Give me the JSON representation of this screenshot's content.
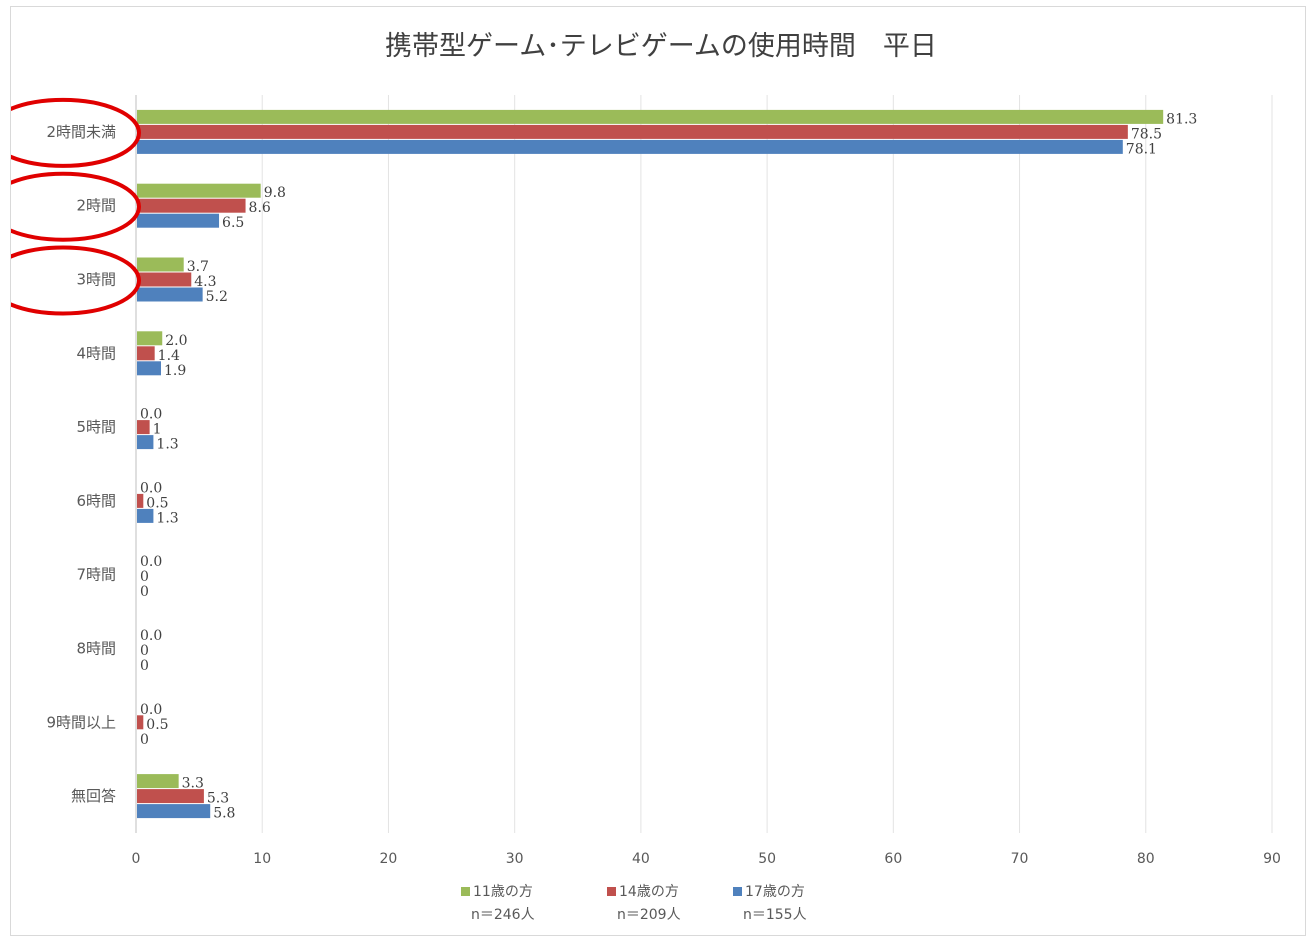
{
  "chart_data": {
    "type": "bar",
    "orientation": "horizontal",
    "title": "携帯型ゲーム･テレビゲームの使用時間　平日",
    "categories": [
      "2時間未満",
      "2時間",
      "3時間",
      "4時間",
      "5時間",
      "6時間",
      "7時間",
      "8時間",
      "9時間以上",
      "無回答"
    ],
    "series": [
      {
        "name": "11歳の方",
        "n_label": "n＝246人",
        "color": "#9bbb59",
        "values": [
          81.3,
          9.8,
          3.7,
          2.0,
          0.0,
          0.0,
          0.0,
          0.0,
          0.0,
          3.3
        ],
        "labels": [
          "81.3",
          "9.8",
          "3.7",
          "2.0",
          "0.0",
          "0.0",
          "0.0",
          "0.0",
          "0.0",
          "3.3"
        ]
      },
      {
        "name": "14歳の方",
        "n_label": "n＝209人",
        "color": "#c0504d",
        "values": [
          78.5,
          8.6,
          4.3,
          1.4,
          1,
          0.5,
          0,
          0,
          0.5,
          5.3
        ],
        "labels": [
          "78.5",
          "8.6",
          "4.3",
          "1.4",
          "1",
          "0.5",
          "0",
          "0",
          "0.5",
          "5.3"
        ]
      },
      {
        "name": "17歳の方",
        "n_label": "n＝155人",
        "color": "#4f81bd",
        "values": [
          78.1,
          6.5,
          5.2,
          1.9,
          1.3,
          1.3,
          0,
          0,
          0,
          5.8
        ],
        "labels": [
          "78.1",
          "6.5",
          "5.2",
          "1.9",
          "1.3",
          "1.3",
          "0",
          "0",
          "0",
          "5.8"
        ]
      }
    ],
    "xlim": [
      0,
      90
    ],
    "xticks": [
      "0",
      "10",
      "20",
      "30",
      "40",
      "50",
      "60",
      "70",
      "80",
      "90"
    ],
    "xlabel": "",
    "ylabel": "",
    "grid": "vertical",
    "legend_position": "bottom",
    "annotations": {
      "circled_categories": [
        "2時間未満",
        "2時間",
        "3時間"
      ],
      "circle_color": "#e00000"
    }
  }
}
